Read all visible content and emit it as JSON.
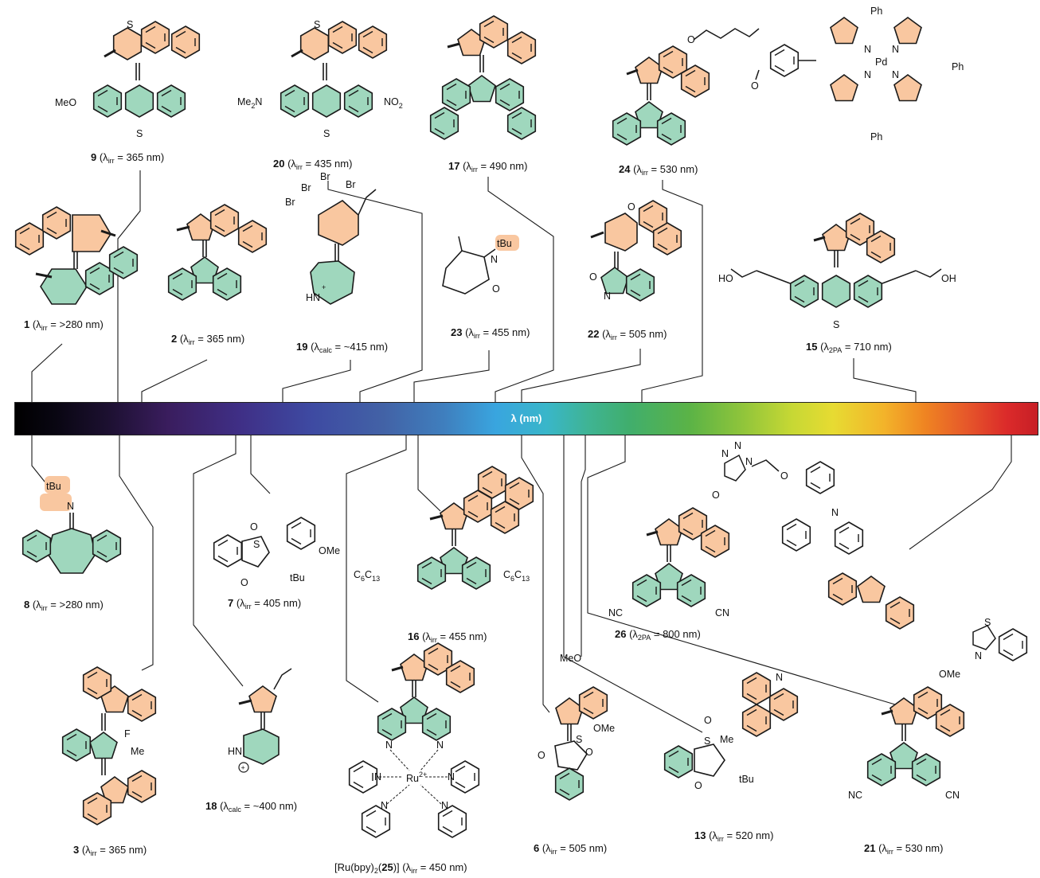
{
  "axis_label": "λ (nm)",
  "captions": {
    "c9": {
      "num": "9",
      "pre": " (λ",
      "sub": "irr",
      "post": " = 365 nm)"
    },
    "c20": {
      "num": "20",
      "pre": " (λ",
      "sub": "irr",
      "post": " = 435 nm)"
    },
    "c17": {
      "num": "17",
      "pre": " (λ",
      "sub": "irr",
      "post": " = 490 nm)"
    },
    "c24": {
      "num": "24",
      "pre": " (λ",
      "sub": "irr",
      "post": " = 530 nm)"
    },
    "c1": {
      "num": "1",
      "pre": " (λ",
      "sub": "irr",
      "post": " = >280 nm)"
    },
    "c2": {
      "num": "2",
      "pre": " (λ",
      "sub": "irr",
      "post": " = 365 nm)"
    },
    "c19": {
      "num": "19",
      "pre": " (λ",
      "sub": "calc",
      "post": " = ~415 nm)"
    },
    "c23": {
      "num": "23",
      "pre": " (λ",
      "sub": "irr",
      "post": " = 455 nm)"
    },
    "c22": {
      "num": "22",
      "pre": " (λ",
      "sub": "irr",
      "post": " = 505 nm)"
    },
    "c15": {
      "num": "15",
      "pre": " (λ",
      "sub": "2PA",
      "post": " = 710 nm)"
    },
    "c8": {
      "num": "8",
      "pre": " (λ",
      "sub": "irr",
      "post": " = >280 nm)"
    },
    "c7": {
      "num": "7",
      "pre": " (λ",
      "sub": "irr",
      "post": " = 405 nm)"
    },
    "c16": {
      "num": "16",
      "pre": " (λ",
      "sub": "irr",
      "post": " = 455 nm)"
    },
    "c26": {
      "num": "26",
      "pre": " (λ",
      "sub": "2PA",
      "post": "  = 800 nm)"
    },
    "c3": {
      "num": "3",
      "pre": " (λ",
      "sub": "irr",
      "post": " = 365 nm)"
    },
    "c18": {
      "num": "18",
      "pre": " (λ",
      "sub": "calc",
      "post": " = ~400 nm)"
    },
    "c25": {
      "pre_text": "[Ru(bpy)",
      "sub1": "2",
      "mid": "(",
      "num": "25",
      "post_text": ")] (λ",
      "sub": "irr",
      "post": " = 450 nm)"
    },
    "c6": {
      "num": "6",
      "pre": " (λ",
      "sub": "irr",
      "post": " = 505 nm)"
    },
    "c13": {
      "num": "13",
      "pre": " (λ",
      "sub": "irr",
      "post": " = 520 nm)"
    },
    "c21": {
      "num": "21",
      "pre": " (λ",
      "sub": "irr",
      "post": " = 530 nm)"
    }
  },
  "atom_labels": {
    "S": "S",
    "O": "O",
    "N": "N",
    "F": "F",
    "Br": "Br",
    "Pd": "Pd",
    "Ph": "Ph",
    "MeO": "MeO",
    "OMe": "OMe",
    "Me": "Me",
    "Me2N": "Me",
    "two": "2",
    "NO2": "NO",
    "HO": "HO",
    "OH": "OH",
    "tBu": "tBu",
    "HN": "HN",
    "CN": "CN",
    "NC": "NC",
    "C6H13": "C",
    "six": "6",
    "thirteen": "13",
    "Ru": "Ru",
    "Ru_charge": "2+",
    "plus": "+",
    "minus": "−",
    "plus_circle": "+",
    "Odot": "O"
  },
  "colors": {
    "rotor": "#f9c7a0",
    "stator": "#9fd7bd",
    "line": "#1a1a1a"
  }
}
